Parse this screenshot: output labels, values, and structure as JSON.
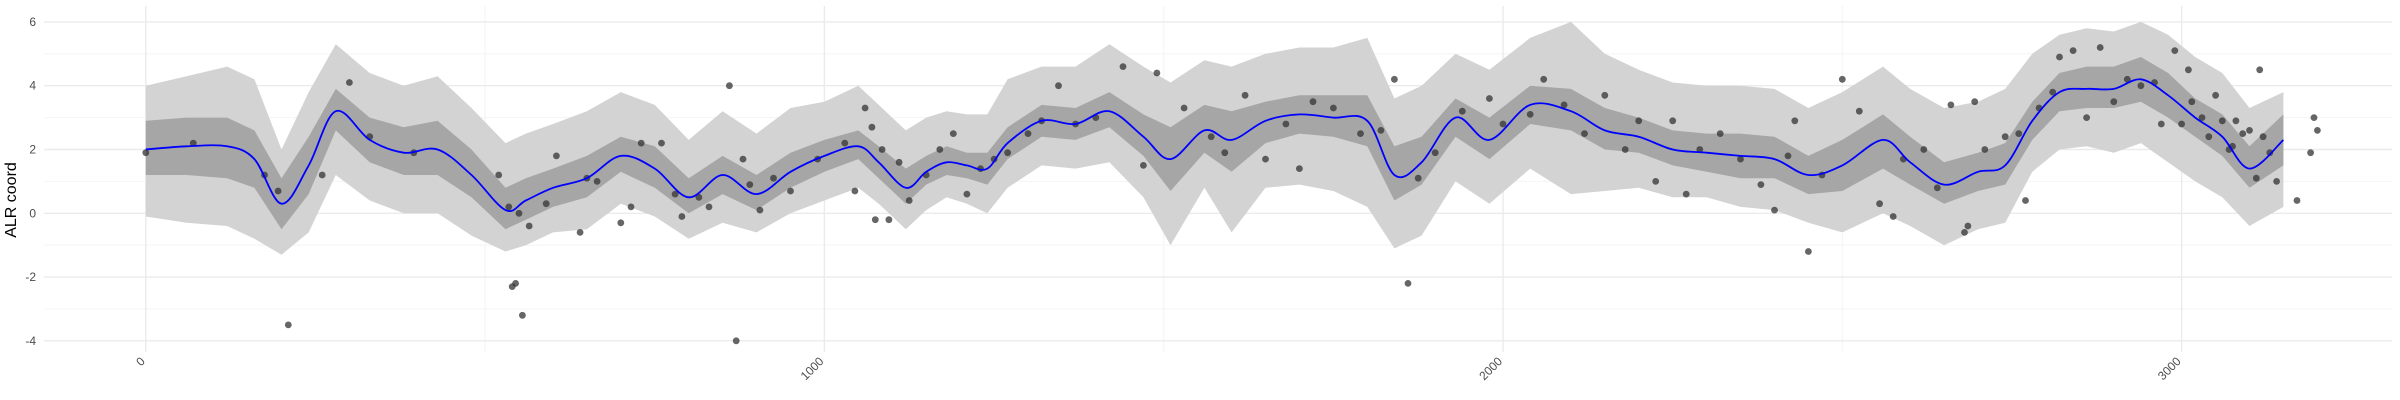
{
  "chart_data": {
    "type": "line",
    "title": "",
    "xlabel": "",
    "ylabel": "ALR coord",
    "xlim": [
      -150,
      3310
    ],
    "ylim": [
      -4.35,
      6.5
    ],
    "x_ticks": [
      0,
      1000,
      2000,
      3000
    ],
    "x_tick_labels": [
      "0",
      "1000",
      "2000",
      "3000"
    ],
    "y_ticks": [
      -4,
      -2,
      0,
      2,
      4,
      6
    ],
    "y_tick_labels": [
      "-4",
      "-2",
      "0",
      "2",
      "4",
      "6"
    ],
    "grid": true,
    "legend": "none",
    "colors": {
      "line": "#0000ff",
      "inner_band": "#a6a6a6",
      "outer_band": "#d3d3d3",
      "points": "#333333",
      "grid_major": "#ebebeb",
      "grid_minor": "#f4f4f4"
    },
    "mean_curve": {
      "x": [
        0,
        60,
        120,
        160,
        200,
        240,
        280,
        330,
        380,
        430,
        480,
        530,
        560,
        600,
        650,
        700,
        750,
        800,
        850,
        900,
        950,
        1000,
        1050,
        1080,
        1120,
        1150,
        1180,
        1210,
        1240,
        1270,
        1320,
        1370,
        1420,
        1470,
        1510,
        1560,
        1600,
        1650,
        1700,
        1750,
        1800,
        1840,
        1880,
        1930,
        1980,
        2040,
        2100,
        2150,
        2200,
        2250,
        2300,
        2350,
        2400,
        2450,
        2500,
        2560,
        2600,
        2650,
        2700,
        2740,
        2780,
        2820,
        2860,
        2900,
        2940,
        2980,
        3020,
        3060,
        3100,
        3150
      ],
      "y": [
        2.0,
        2.1,
        2.1,
        1.7,
        0.3,
        1.5,
        3.2,
        2.3,
        1.9,
        2.0,
        1.2,
        0.1,
        0.4,
        0.8,
        1.1,
        1.8,
        1.4,
        0.5,
        1.2,
        0.6,
        1.3,
        1.8,
        2.1,
        1.6,
        0.8,
        1.3,
        1.6,
        1.5,
        1.4,
        2.2,
        2.9,
        2.8,
        3.2,
        2.4,
        1.7,
        2.6,
        2.3,
        2.9,
        3.1,
        3.0,
        2.9,
        1.2,
        1.6,
        3.0,
        2.3,
        3.4,
        3.2,
        2.6,
        2.4,
        2.0,
        1.9,
        1.8,
        1.7,
        1.2,
        1.5,
        2.3,
        1.6,
        0.9,
        1.3,
        1.5,
        2.9,
        3.8,
        3.9,
        3.9,
        4.2,
        3.7,
        3.0,
        2.4,
        1.4,
        2.3
      ]
    },
    "inner_band": {
      "x": [
        0,
        60,
        120,
        160,
        200,
        240,
        280,
        330,
        380,
        430,
        480,
        530,
        560,
        600,
        650,
        700,
        750,
        800,
        850,
        900,
        950,
        1000,
        1050,
        1080,
        1120,
        1150,
        1180,
        1210,
        1240,
        1270,
        1320,
        1370,
        1420,
        1470,
        1510,
        1560,
        1600,
        1650,
        1700,
        1750,
        1800,
        1840,
        1880,
        1930,
        1980,
        2040,
        2100,
        2150,
        2200,
        2250,
        2300,
        2350,
        2400,
        2450,
        2500,
        2560,
        2600,
        2650,
        2700,
        2740,
        2780,
        2820,
        2860,
        2900,
        2940,
        2980,
        3020,
        3060,
        3100,
        3150
      ],
      "lower": [
        1.2,
        1.2,
        1.1,
        0.8,
        -0.5,
        0.6,
        2.6,
        1.6,
        1.2,
        1.2,
        0.5,
        -0.5,
        -0.2,
        0.2,
        0.5,
        1.3,
        0.8,
        0.0,
        0.6,
        0.1,
        0.8,
        1.3,
        1.7,
        1.1,
        0.3,
        0.9,
        1.2,
        1.1,
        0.9,
        1.7,
        2.4,
        2.3,
        2.7,
        1.8,
        0.7,
        1.9,
        1.3,
        2.2,
        2.5,
        2.4,
        2.1,
        0.4,
        0.9,
        2.4,
        1.7,
        2.8,
        2.6,
        2.0,
        1.9,
        1.5,
        1.3,
        1.1,
        1.1,
        0.6,
        0.7,
        1.4,
        0.9,
        0.3,
        0.7,
        0.9,
        2.3,
        3.2,
        3.3,
        3.3,
        3.5,
        3.0,
        2.4,
        1.8,
        0.8,
        1.5
      ],
      "upper": [
        2.9,
        3.0,
        3.0,
        2.6,
        1.1,
        2.4,
        3.9,
        3.0,
        2.7,
        2.9,
        2.0,
        0.8,
        1.1,
        1.4,
        1.8,
        2.4,
        2.1,
        1.1,
        1.8,
        1.2,
        1.9,
        2.3,
        2.6,
        2.1,
        1.4,
        1.8,
        2.1,
        1.9,
        1.9,
        2.7,
        3.4,
        3.3,
        3.8,
        3.1,
        2.7,
        3.4,
        3.2,
        3.5,
        3.7,
        3.7,
        3.7,
        2.1,
        2.4,
        3.6,
        3.0,
        4.0,
        3.9,
        3.3,
        3.0,
        2.6,
        2.5,
        2.5,
        2.4,
        1.8,
        2.3,
        3.1,
        2.4,
        1.6,
        1.9,
        2.2,
        3.5,
        4.4,
        4.6,
        4.6,
        4.9,
        4.4,
        3.6,
        3.1,
        2.1,
        3.1
      ]
    },
    "outer_band": {
      "x": [
        0,
        60,
        120,
        160,
        200,
        240,
        280,
        330,
        380,
        430,
        480,
        530,
        560,
        600,
        650,
        700,
        750,
        800,
        850,
        900,
        950,
        1000,
        1050,
        1080,
        1120,
        1150,
        1180,
        1210,
        1240,
        1270,
        1320,
        1370,
        1420,
        1470,
        1510,
        1560,
        1600,
        1650,
        1700,
        1750,
        1800,
        1840,
        1880,
        1930,
        1980,
        2040,
        2100,
        2150,
        2200,
        2250,
        2300,
        2350,
        2400,
        2450,
        2500,
        2560,
        2600,
        2650,
        2700,
        2740,
        2780,
        2820,
        2860,
        2900,
        2940,
        2980,
        3020,
        3060,
        3100,
        3150
      ],
      "lower": [
        -0.1,
        -0.3,
        -0.4,
        -0.8,
        -1.3,
        -0.6,
        1.2,
        0.4,
        0.0,
        0.0,
        -0.7,
        -1.2,
        -1.0,
        -0.6,
        -0.5,
        0.3,
        -0.1,
        -0.8,
        -0.3,
        -0.6,
        0.0,
        0.4,
        0.8,
        0.3,
        -0.5,
        0.1,
        0.5,
        0.3,
        0.0,
        0.8,
        1.5,
        1.4,
        1.6,
        0.5,
        -1.0,
        0.8,
        -0.6,
        0.8,
        0.9,
        0.7,
        0.2,
        -1.1,
        -0.7,
        1.0,
        0.3,
        1.4,
        0.6,
        0.7,
        0.8,
        0.5,
        0.5,
        0.2,
        0.1,
        -0.3,
        -0.6,
        0.0,
        -0.4,
        -1.0,
        -0.5,
        -0.3,
        1.3,
        2.0,
        2.1,
        1.9,
        2.2,
        1.6,
        1.0,
        0.5,
        -0.4,
        0.2
      ],
      "upper": [
        4.0,
        4.3,
        4.6,
        4.2,
        2.0,
        3.8,
        5.3,
        4.4,
        4.0,
        4.3,
        3.3,
        2.2,
        2.5,
        2.8,
        3.2,
        3.8,
        3.4,
        2.3,
        3.2,
        2.5,
        3.3,
        3.5,
        4.0,
        3.4,
        2.6,
        3.0,
        3.2,
        3.1,
        3.1,
        4.2,
        4.6,
        4.6,
        5.3,
        4.6,
        4.1,
        4.8,
        4.6,
        5.0,
        5.2,
        5.2,
        5.5,
        3.6,
        4.0,
        5.0,
        4.5,
        5.5,
        6.0,
        5.0,
        4.5,
        4.1,
        4.0,
        4.0,
        3.9,
        3.3,
        3.8,
        4.6,
        3.9,
        3.3,
        3.5,
        3.9,
        5.0,
        5.6,
        5.8,
        5.7,
        6.0,
        5.6,
        4.9,
        4.4,
        3.3,
        3.8
      ]
    },
    "points": [
      {
        "x": 0,
        "y": 1.9
      },
      {
        "x": 70,
        "y": 2.2
      },
      {
        "x": 175,
        "y": 1.2
      },
      {
        "x": 195,
        "y": 0.7
      },
      {
        "x": 210,
        "y": -3.5
      },
      {
        "x": 260,
        "y": 1.2
      },
      {
        "x": 300,
        "y": 4.1
      },
      {
        "x": 330,
        "y": 2.4
      },
      {
        "x": 395,
        "y": 1.9
      },
      {
        "x": 520,
        "y": 1.2
      },
      {
        "x": 535,
        "y": 0.2
      },
      {
        "x": 540,
        "y": -2.3
      },
      {
        "x": 545,
        "y": -2.2
      },
      {
        "x": 550,
        "y": 0.0
      },
      {
        "x": 555,
        "y": -3.2
      },
      {
        "x": 565,
        "y": -0.4
      },
      {
        "x": 590,
        "y": 0.3
      },
      {
        "x": 605,
        "y": 1.8
      },
      {
        "x": 640,
        "y": -0.6
      },
      {
        "x": 650,
        "y": 1.1
      },
      {
        "x": 665,
        "y": 1.0
      },
      {
        "x": 700,
        "y": -0.3
      },
      {
        "x": 715,
        "y": 0.2
      },
      {
        "x": 730,
        "y": 2.2
      },
      {
        "x": 760,
        "y": 2.2
      },
      {
        "x": 780,
        "y": 0.6
      },
      {
        "x": 790,
        "y": -0.1
      },
      {
        "x": 815,
        "y": 0.5
      },
      {
        "x": 830,
        "y": 0.2
      },
      {
        "x": 860,
        "y": 4.0
      },
      {
        "x": 870,
        "y": -4.0
      },
      {
        "x": 880,
        "y": 1.7
      },
      {
        "x": 890,
        "y": 0.9
      },
      {
        "x": 905,
        "y": 0.1
      },
      {
        "x": 925,
        "y": 1.1
      },
      {
        "x": 950,
        "y": 0.7
      },
      {
        "x": 990,
        "y": 1.7
      },
      {
        "x": 1030,
        "y": 2.2
      },
      {
        "x": 1045,
        "y": 0.7
      },
      {
        "x": 1060,
        "y": 3.3
      },
      {
        "x": 1070,
        "y": 2.7
      },
      {
        "x": 1075,
        "y": -0.2
      },
      {
        "x": 1085,
        "y": 2.0
      },
      {
        "x": 1095,
        "y": -0.2
      },
      {
        "x": 1110,
        "y": 1.6
      },
      {
        "x": 1125,
        "y": 0.4
      },
      {
        "x": 1150,
        "y": 1.2
      },
      {
        "x": 1170,
        "y": 2.0
      },
      {
        "x": 1190,
        "y": 2.5
      },
      {
        "x": 1210,
        "y": 0.6
      },
      {
        "x": 1230,
        "y": 1.4
      },
      {
        "x": 1250,
        "y": 1.7
      },
      {
        "x": 1270,
        "y": 1.9
      },
      {
        "x": 1300,
        "y": 2.5
      },
      {
        "x": 1320,
        "y": 2.9
      },
      {
        "x": 1345,
        "y": 4.0
      },
      {
        "x": 1370,
        "y": 2.8
      },
      {
        "x": 1400,
        "y": 3.0
      },
      {
        "x": 1440,
        "y": 4.6
      },
      {
        "x": 1470,
        "y": 1.5
      },
      {
        "x": 1490,
        "y": 4.4
      },
      {
        "x": 1530,
        "y": 3.3
      },
      {
        "x": 1570,
        "y": 2.4
      },
      {
        "x": 1590,
        "y": 1.9
      },
      {
        "x": 1620,
        "y": 3.7
      },
      {
        "x": 1650,
        "y": 1.7
      },
      {
        "x": 1680,
        "y": 2.8
      },
      {
        "x": 1700,
        "y": 1.4
      },
      {
        "x": 1720,
        "y": 3.5
      },
      {
        "x": 1750,
        "y": 3.3
      },
      {
        "x": 1790,
        "y": 2.5
      },
      {
        "x": 1820,
        "y": 2.6
      },
      {
        "x": 1840,
        "y": 4.2
      },
      {
        "x": 1860,
        "y": -2.2
      },
      {
        "x": 1875,
        "y": 1.1
      },
      {
        "x": 1900,
        "y": 1.9
      },
      {
        "x": 1940,
        "y": 3.2
      },
      {
        "x": 1980,
        "y": 3.6
      },
      {
        "x": 2000,
        "y": 2.8
      },
      {
        "x": 2040,
        "y": 3.1
      },
      {
        "x": 2060,
        "y": 4.2
      },
      {
        "x": 2090,
        "y": 3.4
      },
      {
        "x": 2120,
        "y": 2.5
      },
      {
        "x": 2150,
        "y": 3.7
      },
      {
        "x": 2180,
        "y": 2.0
      },
      {
        "x": 2200,
        "y": 2.9
      },
      {
        "x": 2225,
        "y": 1.0
      },
      {
        "x": 2250,
        "y": 2.9
      },
      {
        "x": 2270,
        "y": 0.6
      },
      {
        "x": 2290,
        "y": 2.0
      },
      {
        "x": 2320,
        "y": 2.5
      },
      {
        "x": 2350,
        "y": 1.7
      },
      {
        "x": 2380,
        "y": 0.9
      },
      {
        "x": 2400,
        "y": 0.1
      },
      {
        "x": 2420,
        "y": 1.8
      },
      {
        "x": 2430,
        "y": 2.9
      },
      {
        "x": 2450,
        "y": -1.2
      },
      {
        "x": 2470,
        "y": 1.2
      },
      {
        "x": 2500,
        "y": 4.2
      },
      {
        "x": 2525,
        "y": 3.2
      },
      {
        "x": 2555,
        "y": 0.3
      },
      {
        "x": 2575,
        "y": -0.1
      },
      {
        "x": 2590,
        "y": 1.7
      },
      {
        "x": 2620,
        "y": 2.0
      },
      {
        "x": 2640,
        "y": 0.8
      },
      {
        "x": 2660,
        "y": 3.4
      },
      {
        "x": 2680,
        "y": -0.6
      },
      {
        "x": 2685,
        "y": -0.4
      },
      {
        "x": 2695,
        "y": 3.5
      },
      {
        "x": 2710,
        "y": 2.0
      },
      {
        "x": 2740,
        "y": 2.4
      },
      {
        "x": 2760,
        "y": 2.5
      },
      {
        "x": 2770,
        "y": 0.4
      },
      {
        "x": 2790,
        "y": 3.3
      },
      {
        "x": 2810,
        "y": 3.8
      },
      {
        "x": 2820,
        "y": 4.9
      },
      {
        "x": 2840,
        "y": 5.1
      },
      {
        "x": 2860,
        "y": 3.0
      },
      {
        "x": 2880,
        "y": 5.2
      },
      {
        "x": 2900,
        "y": 3.5
      },
      {
        "x": 2920,
        "y": 4.2
      },
      {
        "x": 2940,
        "y": 4.0
      },
      {
        "x": 2960,
        "y": 4.1
      },
      {
        "x": 2970,
        "y": 2.8
      },
      {
        "x": 2990,
        "y": 5.1
      },
      {
        "x": 3000,
        "y": 2.8
      },
      {
        "x": 3010,
        "y": 4.5
      },
      {
        "x": 3015,
        "y": 3.5
      },
      {
        "x": 3030,
        "y": 3.0
      },
      {
        "x": 3040,
        "y": 2.4
      },
      {
        "x": 3050,
        "y": 3.7
      },
      {
        "x": 3060,
        "y": 2.9
      },
      {
        "x": 3070,
        "y": 2.0
      },
      {
        "x": 3075,
        "y": 2.1
      },
      {
        "x": 3080,
        "y": 2.9
      },
      {
        "x": 3090,
        "y": 2.5
      },
      {
        "x": 3100,
        "y": 2.6
      },
      {
        "x": 3110,
        "y": 1.1
      },
      {
        "x": 3115,
        "y": 4.5
      },
      {
        "x": 3120,
        "y": 2.4
      },
      {
        "x": 3130,
        "y": 1.9
      },
      {
        "x": 3140,
        "y": 1.0
      },
      {
        "x": 3170,
        "y": 0.4
      },
      {
        "x": 3190,
        "y": 1.9
      },
      {
        "x": 3195,
        "y": 3.0
      },
      {
        "x": 3200,
        "y": 2.6
      }
    ]
  }
}
